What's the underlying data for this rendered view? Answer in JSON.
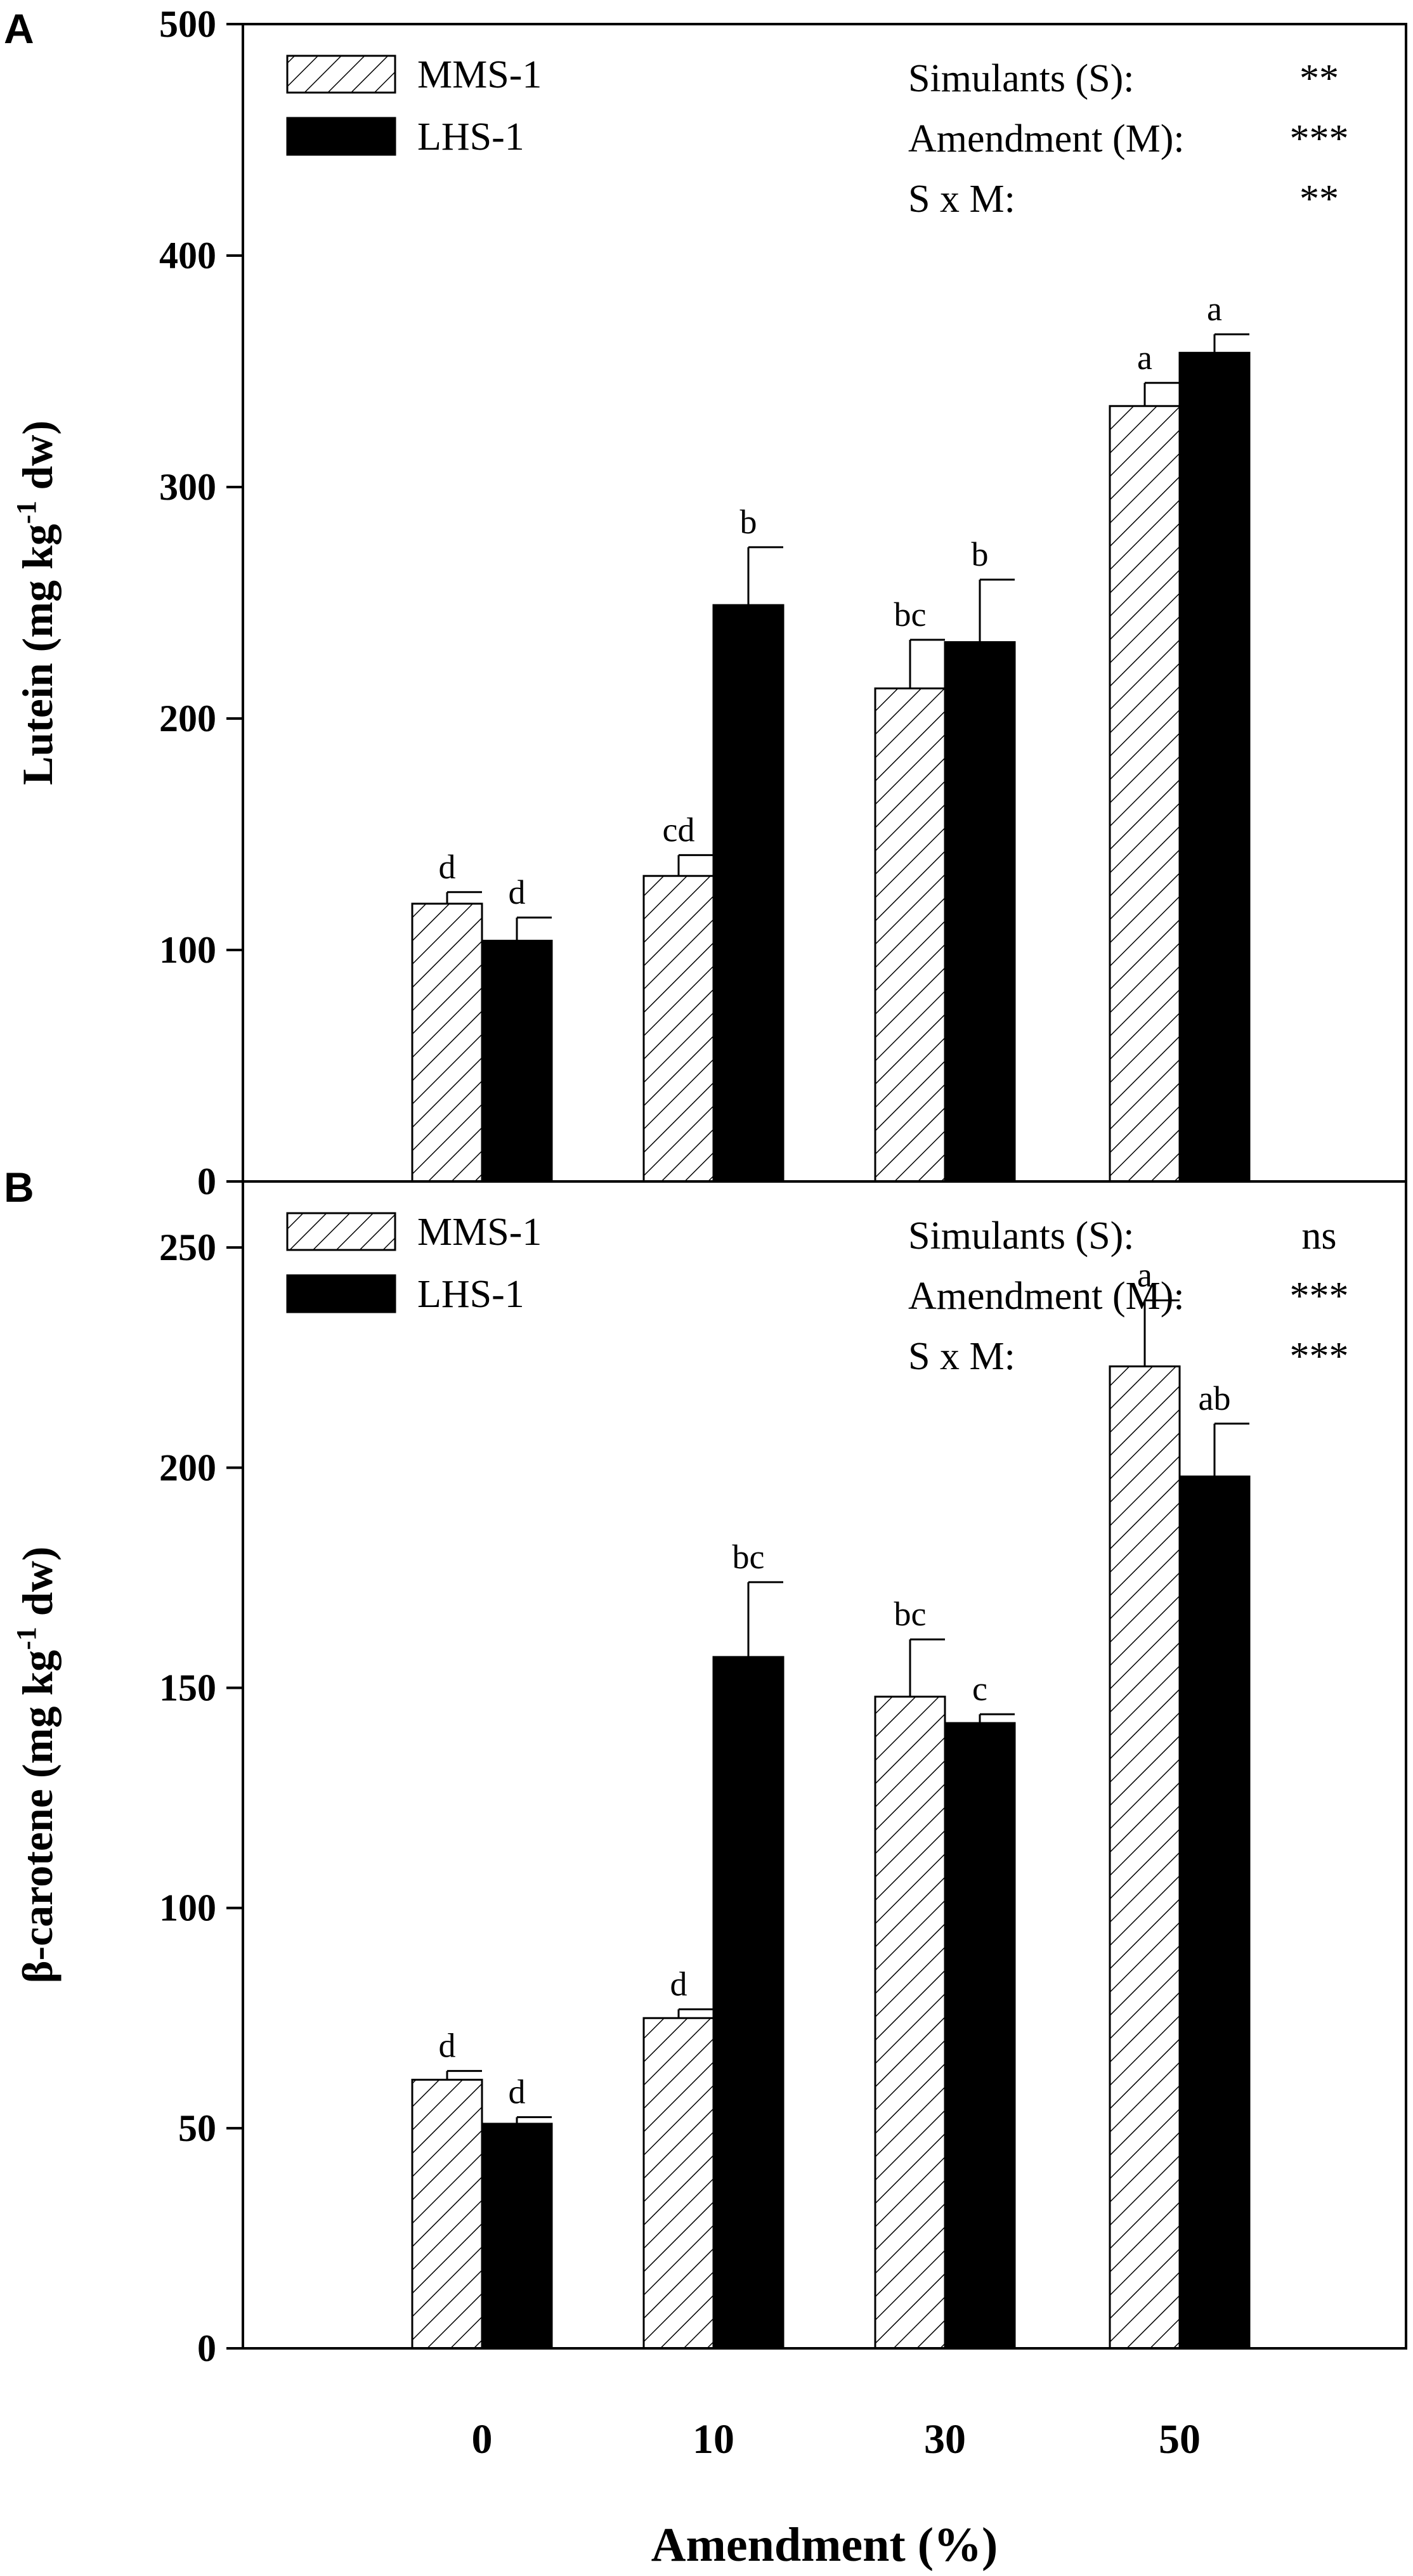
{
  "figure": {
    "shared_xlabel": "Amendment (%)"
  },
  "chart_data": [
    {
      "panel": "A",
      "type": "bar",
      "categories": [
        "0",
        "10",
        "30",
        "50"
      ],
      "ylim": [
        0,
        500
      ],
      "yticks": [
        0,
        100,
        200,
        300,
        400,
        500
      ],
      "ylabel_main": "Lutein (mg kg",
      "ylabel_sup": "-1",
      "ylabel_tail": " dw)",
      "xlabel": "Amendment (%)",
      "series": [
        {
          "name": "MMS-1",
          "pattern": "hatch",
          "values": [
            120,
            132,
            213,
            335
          ],
          "errors": [
            5,
            9,
            21,
            10
          ],
          "letters": [
            "d",
            "cd",
            "bc",
            "a"
          ]
        },
        {
          "name": "LHS-1",
          "pattern": "solid",
          "values": [
            104,
            249,
            233,
            358
          ],
          "errors": [
            10,
            25,
            27,
            8
          ],
          "letters": [
            "d",
            "b",
            "b",
            "a"
          ]
        }
      ],
      "stats": [
        {
          "label": "Simulants (S):",
          "value": "**"
        },
        {
          "label": "Amendment (M):",
          "value": "***"
        },
        {
          "label": "S x M:",
          "value": "**"
        }
      ]
    },
    {
      "panel": "B",
      "type": "bar",
      "categories": [
        "0",
        "10",
        "30",
        "50"
      ],
      "ylim": [
        0,
        265
      ],
      "yticks": [
        0,
        50,
        100,
        150,
        200,
        250
      ],
      "ylabel_main": "β-carotene (mg kg",
      "ylabel_sup": "-1",
      "ylabel_tail": " dw)",
      "xlabel": "Amendment (%)",
      "series": [
        {
          "name": "MMS-1",
          "pattern": "hatch",
          "values": [
            61,
            75,
            148,
            223
          ],
          "errors": [
            2,
            2,
            13,
            15
          ],
          "letters": [
            "d",
            "d",
            "bc",
            "a"
          ]
        },
        {
          "name": "LHS-1",
          "pattern": "solid",
          "values": [
            51,
            157,
            142,
            198
          ],
          "errors": [
            1.5,
            17,
            2,
            12
          ],
          "letters": [
            "d",
            "bc",
            "c",
            "ab"
          ]
        }
      ],
      "stats": [
        {
          "label": "Simulants (S):",
          "value": "ns"
        },
        {
          "label": "Amendment (M):",
          "value": "***"
        },
        {
          "label": "S x M:",
          "value": "***"
        }
      ]
    }
  ]
}
